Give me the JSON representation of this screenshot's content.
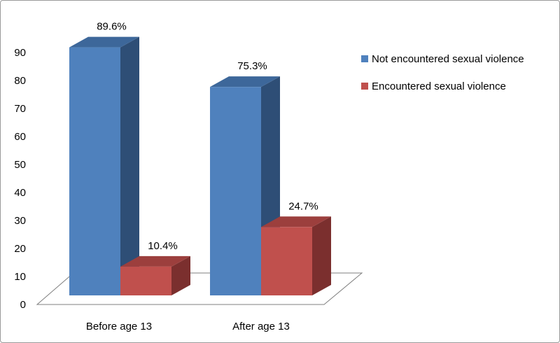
{
  "chart_data": {
    "type": "bar",
    "categories": [
      "Before age 13",
      "After age 13"
    ],
    "series": [
      {
        "name": "Not encountered sexual violence",
        "values": [
          89.6,
          75.3
        ],
        "labels": [
          "89.6%",
          "75.3%"
        ]
      },
      {
        "name": "Encountered sexual violence",
        "values": [
          10.4,
          24.7
        ],
        "labels": [
          "10.4%",
          "24.7%"
        ]
      }
    ],
    "title": "",
    "xlabel": "",
    "ylabel": "",
    "ylim": [
      0,
      90
    ],
    "yticks": [
      "0",
      "10",
      "20",
      "30",
      "40",
      "50",
      "60",
      "70",
      "80",
      "90"
    ],
    "grid": false,
    "style": "3d-clustered-column",
    "legend_position": "right",
    "colors": {
      "Not encountered sexual violence": {
        "front": "#4f81bd",
        "top": "#3d679a",
        "side": "#2e4e76"
      },
      "Encountered sexual violence": {
        "front": "#c0504d",
        "top": "#9c3f3d",
        "side": "#7b2f2e"
      },
      "floor": "#7f7f7f"
    }
  }
}
